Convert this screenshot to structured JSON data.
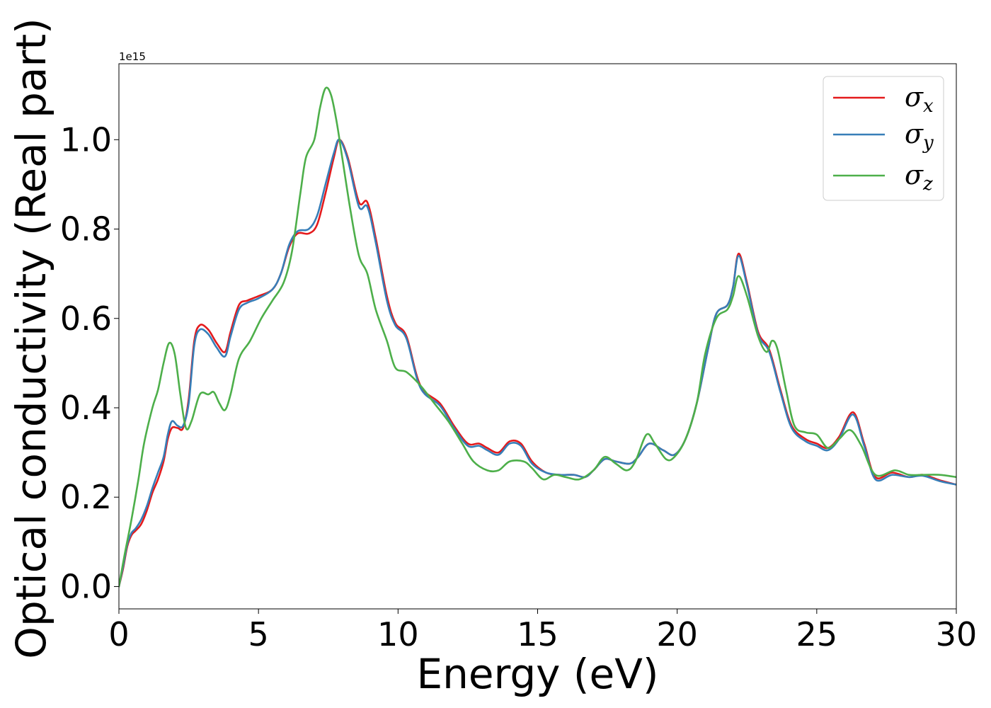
{
  "chart_data": {
    "type": "line",
    "title": "",
    "xlabel": "Energy (eV)",
    "ylabel": "Optical conductivity (Real part)",
    "offset_label": "1e15",
    "xlim": [
      0,
      30
    ],
    "ylim": [
      -0.05,
      1.17
    ],
    "xticks": [
      0,
      5,
      10,
      15,
      20,
      25,
      30
    ],
    "xtick_labels": [
      "0",
      "5",
      "10",
      "15",
      "20",
      "25",
      "30"
    ],
    "yticks": [
      0.0,
      0.2,
      0.4,
      0.6,
      0.8,
      1.0
    ],
    "ytick_labels": [
      "0.0",
      "0.2",
      "0.4",
      "0.6",
      "0.8",
      "1.0"
    ],
    "grid": false,
    "legend_position": "top-right",
    "series": [
      {
        "name": "σx",
        "symbol": "σ",
        "subscript": "x",
        "color": "#e41a1c",
        "points": [
          [
            0,
            0.0
          ],
          [
            0.15,
            0.04
          ],
          [
            0.3,
            0.09
          ],
          [
            0.45,
            0.115
          ],
          [
            0.6,
            0.125
          ],
          [
            0.8,
            0.14
          ],
          [
            1.0,
            0.17
          ],
          [
            1.2,
            0.21
          ],
          [
            1.4,
            0.24
          ],
          [
            1.6,
            0.28
          ],
          [
            1.75,
            0.33
          ],
          [
            1.9,
            0.355
          ],
          [
            2.1,
            0.355
          ],
          [
            2.3,
            0.355
          ],
          [
            2.5,
            0.42
          ],
          [
            2.7,
            0.55
          ],
          [
            2.9,
            0.585
          ],
          [
            3.2,
            0.575
          ],
          [
            3.5,
            0.545
          ],
          [
            3.8,
            0.525
          ],
          [
            4.0,
            0.57
          ],
          [
            4.3,
            0.63
          ],
          [
            4.6,
            0.64
          ],
          [
            5.0,
            0.65
          ],
          [
            5.5,
            0.665
          ],
          [
            5.8,
            0.7
          ],
          [
            6.1,
            0.76
          ],
          [
            6.4,
            0.79
          ],
          [
            6.8,
            0.79
          ],
          [
            7.1,
            0.81
          ],
          [
            7.4,
            0.88
          ],
          [
            7.7,
            0.96
          ],
          [
            7.9,
            1.0
          ],
          [
            8.2,
            0.96
          ],
          [
            8.6,
            0.86
          ],
          [
            8.9,
            0.86
          ],
          [
            9.2,
            0.78
          ],
          [
            9.6,
            0.65
          ],
          [
            9.9,
            0.59
          ],
          [
            10.3,
            0.56
          ],
          [
            10.8,
            0.45
          ],
          [
            11.5,
            0.41
          ],
          [
            12.0,
            0.36
          ],
          [
            12.5,
            0.32
          ],
          [
            12.9,
            0.32
          ],
          [
            13.2,
            0.31
          ],
          [
            13.6,
            0.3
          ],
          [
            14.0,
            0.325
          ],
          [
            14.4,
            0.32
          ],
          [
            14.8,
            0.28
          ],
          [
            15.3,
            0.255
          ],
          [
            15.8,
            0.25
          ],
          [
            16.3,
            0.25
          ],
          [
            16.7,
            0.245
          ],
          [
            17.0,
            0.26
          ],
          [
            17.4,
            0.285
          ],
          [
            17.8,
            0.28
          ],
          [
            18.3,
            0.275
          ],
          [
            18.6,
            0.29
          ],
          [
            19.0,
            0.32
          ],
          [
            19.5,
            0.305
          ],
          [
            19.9,
            0.295
          ],
          [
            20.3,
            0.33
          ],
          [
            20.7,
            0.41
          ],
          [
            21.1,
            0.53
          ],
          [
            21.4,
            0.61
          ],
          [
            21.8,
            0.63
          ],
          [
            22.0,
            0.67
          ],
          [
            22.2,
            0.745
          ],
          [
            22.5,
            0.68
          ],
          [
            22.9,
            0.57
          ],
          [
            23.3,
            0.53
          ],
          [
            23.7,
            0.44
          ],
          [
            24.1,
            0.36
          ],
          [
            24.6,
            0.33
          ],
          [
            25.0,
            0.32
          ],
          [
            25.4,
            0.31
          ],
          [
            25.8,
            0.335
          ],
          [
            26.3,
            0.39
          ],
          [
            26.7,
            0.32
          ],
          [
            27.1,
            0.245
          ],
          [
            27.7,
            0.255
          ],
          [
            28.3,
            0.245
          ],
          [
            28.8,
            0.25
          ],
          [
            29.4,
            0.238
          ],
          [
            30.0,
            0.228
          ]
        ]
      },
      {
        "name": "σy",
        "symbol": "σ",
        "subscript": "y",
        "color": "#377eb8",
        "points": [
          [
            0,
            0.0
          ],
          [
            0.15,
            0.045
          ],
          [
            0.3,
            0.095
          ],
          [
            0.45,
            0.12
          ],
          [
            0.6,
            0.13
          ],
          [
            0.8,
            0.15
          ],
          [
            1.0,
            0.18
          ],
          [
            1.2,
            0.22
          ],
          [
            1.4,
            0.255
          ],
          [
            1.6,
            0.29
          ],
          [
            1.75,
            0.34
          ],
          [
            1.9,
            0.37
          ],
          [
            2.1,
            0.36
          ],
          [
            2.3,
            0.36
          ],
          [
            2.5,
            0.41
          ],
          [
            2.7,
            0.54
          ],
          [
            2.9,
            0.575
          ],
          [
            3.2,
            0.565
          ],
          [
            3.5,
            0.535
          ],
          [
            3.8,
            0.515
          ],
          [
            4.0,
            0.56
          ],
          [
            4.3,
            0.62
          ],
          [
            4.6,
            0.635
          ],
          [
            5.0,
            0.645
          ],
          [
            5.5,
            0.665
          ],
          [
            5.8,
            0.7
          ],
          [
            6.1,
            0.765
          ],
          [
            6.4,
            0.795
          ],
          [
            6.8,
            0.8
          ],
          [
            7.1,
            0.83
          ],
          [
            7.4,
            0.9
          ],
          [
            7.7,
            0.97
          ],
          [
            7.9,
            1.0
          ],
          [
            8.2,
            0.955
          ],
          [
            8.6,
            0.85
          ],
          [
            8.9,
            0.85
          ],
          [
            9.2,
            0.77
          ],
          [
            9.6,
            0.64
          ],
          [
            9.9,
            0.585
          ],
          [
            10.3,
            0.555
          ],
          [
            10.8,
            0.445
          ],
          [
            11.5,
            0.405
          ],
          [
            12.0,
            0.355
          ],
          [
            12.5,
            0.315
          ],
          [
            12.9,
            0.315
          ],
          [
            13.2,
            0.305
          ],
          [
            13.6,
            0.295
          ],
          [
            14.0,
            0.32
          ],
          [
            14.4,
            0.315
          ],
          [
            14.8,
            0.275
          ],
          [
            15.3,
            0.255
          ],
          [
            15.8,
            0.25
          ],
          [
            16.3,
            0.25
          ],
          [
            16.7,
            0.245
          ],
          [
            17.0,
            0.26
          ],
          [
            17.4,
            0.285
          ],
          [
            17.8,
            0.28
          ],
          [
            18.3,
            0.275
          ],
          [
            18.6,
            0.29
          ],
          [
            19.0,
            0.32
          ],
          [
            19.5,
            0.305
          ],
          [
            19.9,
            0.295
          ],
          [
            20.3,
            0.33
          ],
          [
            20.7,
            0.41
          ],
          [
            21.1,
            0.53
          ],
          [
            21.4,
            0.61
          ],
          [
            21.8,
            0.63
          ],
          [
            22.0,
            0.67
          ],
          [
            22.2,
            0.74
          ],
          [
            22.5,
            0.675
          ],
          [
            22.9,
            0.565
          ],
          [
            23.3,
            0.525
          ],
          [
            23.7,
            0.435
          ],
          [
            24.1,
            0.355
          ],
          [
            24.6,
            0.325
          ],
          [
            25.0,
            0.315
          ],
          [
            25.4,
            0.305
          ],
          [
            25.8,
            0.33
          ],
          [
            26.3,
            0.385
          ],
          [
            26.7,
            0.315
          ],
          [
            27.1,
            0.24
          ],
          [
            27.7,
            0.25
          ],
          [
            28.3,
            0.245
          ],
          [
            28.8,
            0.248
          ],
          [
            29.4,
            0.236
          ],
          [
            30.0,
            0.228
          ]
        ]
      },
      {
        "name": "σz",
        "symbol": "σ",
        "subscript": "z",
        "color": "#4daf4a",
        "points": [
          [
            0,
            0.0
          ],
          [
            0.2,
            0.07
          ],
          [
            0.45,
            0.15
          ],
          [
            0.7,
            0.24
          ],
          [
            0.9,
            0.32
          ],
          [
            1.2,
            0.4
          ],
          [
            1.4,
            0.44
          ],
          [
            1.6,
            0.5
          ],
          [
            1.8,
            0.545
          ],
          [
            2.0,
            0.52
          ],
          [
            2.2,
            0.43
          ],
          [
            2.4,
            0.355
          ],
          [
            2.6,
            0.37
          ],
          [
            2.9,
            0.43
          ],
          [
            3.2,
            0.43
          ],
          [
            3.4,
            0.435
          ],
          [
            3.6,
            0.41
          ],
          [
            3.8,
            0.395
          ],
          [
            4.0,
            0.43
          ],
          [
            4.3,
            0.51
          ],
          [
            4.7,
            0.55
          ],
          [
            5.1,
            0.6
          ],
          [
            5.5,
            0.64
          ],
          [
            5.9,
            0.68
          ],
          [
            6.2,
            0.75
          ],
          [
            6.5,
            0.88
          ],
          [
            6.7,
            0.96
          ],
          [
            7.0,
            1.0
          ],
          [
            7.2,
            1.07
          ],
          [
            7.4,
            1.115
          ],
          [
            7.6,
            1.1
          ],
          [
            7.8,
            1.04
          ],
          [
            8.0,
            0.96
          ],
          [
            8.3,
            0.84
          ],
          [
            8.6,
            0.74
          ],
          [
            8.9,
            0.7
          ],
          [
            9.2,
            0.62
          ],
          [
            9.6,
            0.55
          ],
          [
            9.9,
            0.49
          ],
          [
            10.3,
            0.48
          ],
          [
            10.8,
            0.45
          ],
          [
            11.3,
            0.41
          ],
          [
            11.8,
            0.37
          ],
          [
            12.3,
            0.32
          ],
          [
            12.7,
            0.28
          ],
          [
            13.2,
            0.26
          ],
          [
            13.6,
            0.26
          ],
          [
            14.0,
            0.28
          ],
          [
            14.5,
            0.28
          ],
          [
            14.8,
            0.265
          ],
          [
            15.2,
            0.24
          ],
          [
            15.6,
            0.25
          ],
          [
            16.0,
            0.245
          ],
          [
            16.5,
            0.24
          ],
          [
            17.0,
            0.26
          ],
          [
            17.4,
            0.29
          ],
          [
            17.8,
            0.275
          ],
          [
            18.2,
            0.26
          ],
          [
            18.5,
            0.28
          ],
          [
            18.9,
            0.34
          ],
          [
            19.2,
            0.32
          ],
          [
            19.6,
            0.285
          ],
          [
            19.9,
            0.29
          ],
          [
            20.3,
            0.33
          ],
          [
            20.7,
            0.41
          ],
          [
            21.0,
            0.52
          ],
          [
            21.4,
            0.6
          ],
          [
            21.8,
            0.62
          ],
          [
            22.0,
            0.65
          ],
          [
            22.2,
            0.695
          ],
          [
            22.5,
            0.65
          ],
          [
            22.9,
            0.56
          ],
          [
            23.2,
            0.525
          ],
          [
            23.4,
            0.55
          ],
          [
            23.6,
            0.53
          ],
          [
            23.9,
            0.44
          ],
          [
            24.2,
            0.36
          ],
          [
            24.6,
            0.345
          ],
          [
            25.0,
            0.34
          ],
          [
            25.4,
            0.31
          ],
          [
            25.8,
            0.33
          ],
          [
            26.2,
            0.35
          ],
          [
            26.6,
            0.315
          ],
          [
            27.1,
            0.25
          ],
          [
            27.8,
            0.26
          ],
          [
            28.3,
            0.25
          ],
          [
            28.8,
            0.25
          ],
          [
            29.4,
            0.25
          ],
          [
            30.0,
            0.245
          ]
        ]
      }
    ]
  }
}
